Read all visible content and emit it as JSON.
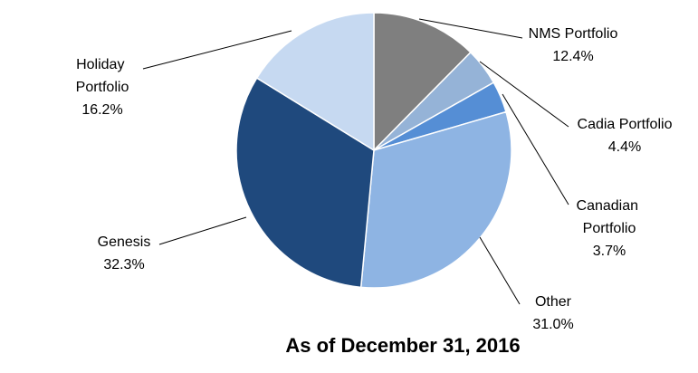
{
  "chart_data": {
    "type": "pie",
    "title": "As of December 31, 2016",
    "categories": [
      "NMS Portfolio",
      "Cadia Portfolio",
      "Canadian Portfolio",
      "Other",
      "Genesis",
      "Holiday Portfolio"
    ],
    "values": [
      12.4,
      4.4,
      3.7,
      31.0,
      32.3,
      16.2
    ],
    "value_labels": [
      "12.4%",
      "4.4%",
      "3.7%",
      "31.0%",
      "32.3%",
      "16.2%"
    ],
    "colors": [
      "#7f7f7f",
      "#95b3d7",
      "#558ed5",
      "#8eb4e3",
      "#1f497d",
      "#c6d9f1"
    ]
  }
}
